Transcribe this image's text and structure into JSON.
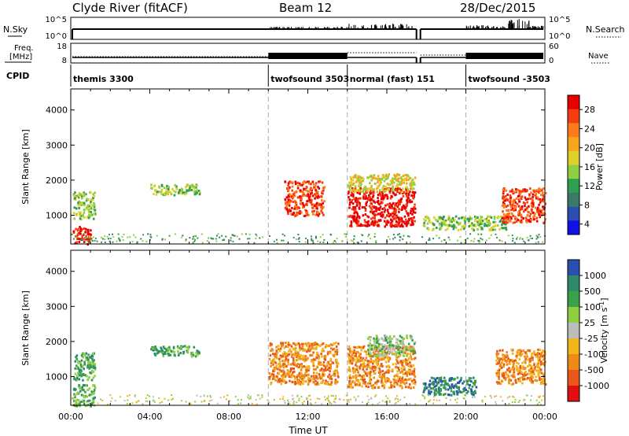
{
  "header": {
    "station": "Clyde River (fitACF)",
    "beam": "Beam 12",
    "date": "28/Dec/2015"
  },
  "top_panels": {
    "nsky_label": "N.Sky",
    "nsky_ticks": [
      "10^5",
      "10^0"
    ],
    "nsearch_label": "N.Search",
    "nsearch_ticks": [
      "10^5",
      "10^0"
    ],
    "freq_label_1": "Freq.",
    "freq_label_2": "[MHz]",
    "freq_ticks": [
      "18",
      "8"
    ],
    "nave_label": "Nave",
    "nave_ticks": [
      "60",
      "0"
    ],
    "cpid_label": "CPID",
    "cpid_segments": [
      {
        "label": "themis 3300",
        "start_hour": 0.0
      },
      {
        "label": "twofsound 3503",
        "start_hour": 10.0
      },
      {
        "label": "normal (fast) 151",
        "start_hour": 14.0
      },
      {
        "label": "twofsound -3503",
        "start_hour": 20.0
      }
    ]
  },
  "colorbars": {
    "power": {
      "label": "Power [dB]",
      "ticks": [
        "28",
        "24",
        "20",
        "16",
        "12",
        "8",
        "4"
      ],
      "colors": [
        "#e80000",
        "#f53d10",
        "#ff7a1a",
        "#f7a51c",
        "#e0cf2a",
        "#8fcf45",
        "#2e9e50",
        "#3a7a66",
        "#2a4fb0",
        "#1010e8"
      ]
    },
    "velocity": {
      "label_main": "Velocity",
      "label_units": "[m s",
      "label_exp": "-1",
      "label_close": "]",
      "ticks": [
        "1000",
        "500",
        "100",
        "25",
        "-25",
        "-100",
        "-500",
        "-1000"
      ],
      "colors": [
        "#2a4fb0",
        "#2e8a6a",
        "#3aa04a",
        "#8fd040",
        "#bcbcbc",
        "#f3b51c",
        "#f08a16",
        "#e8581a",
        "#e01010"
      ]
    }
  },
  "chart_data": {
    "type": "heatmap",
    "xlabel": "Time UT",
    "x_ticks": [
      "00:00",
      "04:00",
      "08:00",
      "12:00",
      "16:00",
      "20:00",
      "00:00"
    ],
    "x_range_hours": [
      0,
      24
    ],
    "ylabel": "Slant Range [km]",
    "y_ticks": [
      "1000",
      "2000",
      "3000",
      "4000"
    ],
    "y_range_km": [
      180,
      4600
    ],
    "mode_change_hours": [
      10,
      14,
      20
    ],
    "data_gap_hours": [
      17.5,
      17.7
    ],
    "power_regions": [
      {
        "t0": 0.1,
        "t1": 1.0,
        "r0": 200,
        "r1": 700,
        "level": 28
      },
      {
        "t0": 0.1,
        "t1": 1.2,
        "r0": 900,
        "r1": 1700,
        "level": 12
      },
      {
        "t0": 4.0,
        "t1": 6.5,
        "r0": 1600,
        "r1": 1900,
        "level": 12
      },
      {
        "t0": 10.8,
        "t1": 12.8,
        "r0": 1000,
        "r1": 2000,
        "level": 24
      },
      {
        "t0": 14.0,
        "t1": 17.4,
        "r0": 700,
        "r1": 1800,
        "level": 28
      },
      {
        "t0": 14.0,
        "t1": 17.4,
        "r0": 1700,
        "r1": 2200,
        "level": 16
      },
      {
        "t0": 17.8,
        "t1": 22.0,
        "r0": 600,
        "r1": 1000,
        "level": 12
      },
      {
        "t0": 21.8,
        "t1": 24.0,
        "r0": 800,
        "r1": 1800,
        "level": 24
      }
    ],
    "velocity_regions": [
      {
        "t0": 0.1,
        "t1": 1.2,
        "r0": 180,
        "r1": 800,
        "level": 100
      },
      {
        "t0": 0.1,
        "t1": 1.2,
        "r0": 900,
        "r1": 1700,
        "level": 100
      },
      {
        "t0": 4.0,
        "t1": 6.5,
        "r0": 1600,
        "r1": 1900,
        "level": 100
      },
      {
        "t0": 10.0,
        "t1": 13.5,
        "r0": 800,
        "r1": 2000,
        "level": -500
      },
      {
        "t0": 14.0,
        "t1": 17.4,
        "r0": 700,
        "r1": 1900,
        "level": -500
      },
      {
        "t0": 15.0,
        "t1": 17.4,
        "r0": 1600,
        "r1": 2200,
        "level": 25
      },
      {
        "t0": 17.8,
        "t1": 20.5,
        "r0": 500,
        "r1": 1000,
        "level": 500
      },
      {
        "t0": 21.5,
        "t1": 24.0,
        "r0": 800,
        "r1": 1800,
        "level": -500
      }
    ]
  }
}
